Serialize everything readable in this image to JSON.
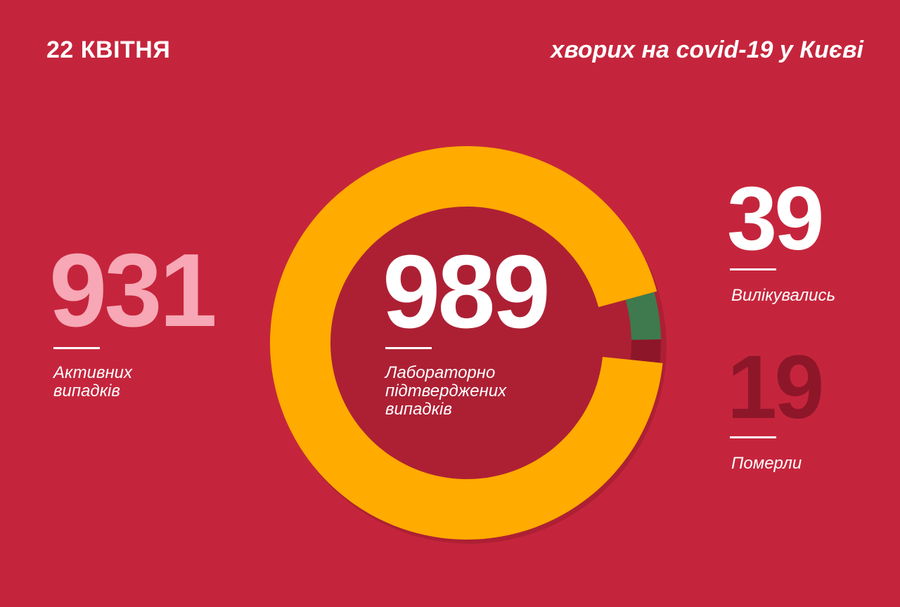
{
  "header": {
    "date": "22 КВІТНЯ",
    "headline": "хворих на covid-19 у Києві"
  },
  "stats": {
    "active": {
      "value": "931",
      "label": "Активних випадків"
    },
    "confirmed": {
      "value": "989",
      "label": "Лабораторно підтверджених випадків"
    },
    "recovered": {
      "value": "39",
      "label": "Вилікувались"
    },
    "deaths": {
      "value": "19",
      "label": "Померли"
    }
  },
  "chart_data": {
    "type": "pie",
    "donut": true,
    "total": 989,
    "slices": [
      {
        "label": "Активних випадків",
        "value": 931,
        "color": "#ffab00"
      },
      {
        "label": "Вилікувались",
        "value": 39,
        "color": "#3e7a4e"
      },
      {
        "label": "Померли",
        "value": 19,
        "color": "#8e1629"
      }
    ]
  },
  "colors": {
    "background": "#c5253c",
    "active": "#f7a7b5",
    "deaths": "#8e1629"
  }
}
